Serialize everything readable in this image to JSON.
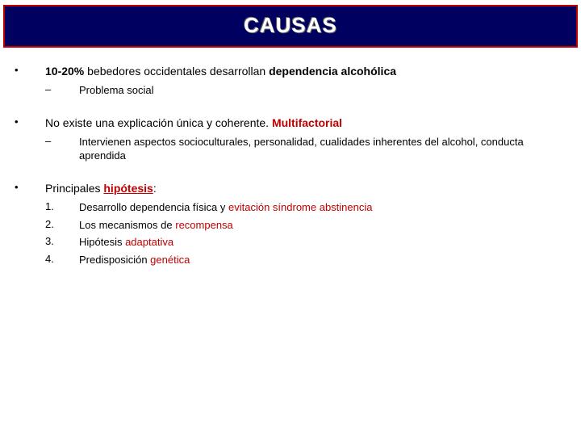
{
  "title": "CAUSAS",
  "colors": {
    "title_bg": "#000060",
    "title_border": "#c00000",
    "accent": "#c00000",
    "text": "#000000",
    "bg": "#ffffff"
  },
  "p1": {
    "bullet": "•",
    "pct": "10-20%",
    "mid": " bebedores occidentales desarrollan ",
    "tail": "dependencia alcohólica",
    "sub_bullet": "–",
    "sub": "Problema social"
  },
  "p2": {
    "bullet": "•",
    "lead": "No existe una explicación única y coherente. ",
    "tail": "Multifactorial",
    "sub_bullet": "–",
    "sub": "Intervienen aspectos socioculturales, personalidad, cualidades inherentes del alcohol, conducta aprendida"
  },
  "p3": {
    "bullet": "•",
    "lead": "Principales ",
    "hyp": "hipótesis",
    "colon": ":",
    "items": [
      {
        "n": "1.",
        "a": "Desarrollo dependencia física y ",
        "r": "evitación síndrome abstinencia"
      },
      {
        "n": "2.",
        "a": "Los mecanismos de ",
        "r": "recompensa"
      },
      {
        "n": "3.",
        "a": "Hipótesis ",
        "r": "adaptativa"
      },
      {
        "n": "4.",
        "a": "Predisposición ",
        "r": "genética"
      }
    ]
  }
}
